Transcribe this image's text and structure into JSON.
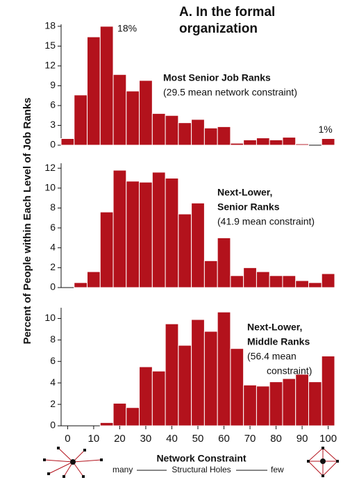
{
  "title": "A. In the formal organization",
  "ylabel": "Percent of People within Each Level of Job Ranks",
  "xlabel": "Network Constraint",
  "axis_note": {
    "left": "many",
    "middle": "Structural Holes",
    "right": "few"
  },
  "chart_data": [
    {
      "type": "histogram",
      "color": "#b3121c",
      "bins": [
        -2.5,
        2.5,
        7.5,
        12.5,
        17.5,
        22.5,
        27.5,
        32.5,
        37.5,
        42.5,
        47.5,
        52.5,
        57.5,
        62.5,
        67.5,
        72.5,
        77.5,
        82.5,
        87.5,
        92.5,
        97.5,
        102.5
      ],
      "values": [
        1,
        7.6,
        16.4,
        18,
        10.7,
        8.2,
        9.8,
        4.8,
        4.5,
        3.4,
        3.9,
        2.6,
        2.8,
        0.3,
        0.8,
        1.1,
        0.8,
        1.2,
        0.2,
        0,
        1
      ],
      "value_labels": [
        null,
        null,
        null,
        "18%",
        null,
        null,
        null,
        null,
        null,
        null,
        null,
        null,
        null,
        null,
        null,
        null,
        null,
        null,
        null,
        null,
        "1%"
      ],
      "ylim": [
        0,
        18.3
      ],
      "yticks": [
        0,
        3,
        6,
        9,
        12,
        15,
        18
      ],
      "annotation": {
        "bold": [
          "Most Senior Job Ranks"
        ],
        "text": [
          "(29.5 mean network constraint)"
        ]
      }
    },
    {
      "type": "histogram",
      "color": "#b3121c",
      "bins": [
        -2.5,
        2.5,
        7.5,
        12.5,
        17.5,
        22.5,
        27.5,
        32.5,
        37.5,
        42.5,
        47.5,
        52.5,
        57.5,
        62.5,
        67.5,
        72.5,
        77.5,
        82.5,
        87.5,
        92.5,
        97.5,
        102.5
      ],
      "values": [
        0,
        0.5,
        1.6,
        7.6,
        11.8,
        10.7,
        10.6,
        11.6,
        11.0,
        7.4,
        8.5,
        2.7,
        5.0,
        1.2,
        2.0,
        1.6,
        1.2,
        1.2,
        0.7,
        0.5,
        1.4
      ],
      "ylim": [
        0,
        12.5
      ],
      "yticks": [
        0,
        2,
        4,
        6,
        8,
        10,
        12
      ],
      "annotation": {
        "bold": [
          "Next-Lower,",
          "Senior Ranks"
        ],
        "text": [
          "(41.9 mean constraint)"
        ]
      }
    },
    {
      "type": "histogram",
      "color": "#b3121c",
      "bins": [
        -2.5,
        2.5,
        7.5,
        12.5,
        17.5,
        22.5,
        27.5,
        32.5,
        37.5,
        42.5,
        47.5,
        52.5,
        57.5,
        62.5,
        67.5,
        72.5,
        77.5,
        82.5,
        87.5,
        92.5,
        97.5,
        102.5
      ],
      "values": [
        0,
        0,
        0,
        0.3,
        2.1,
        1.7,
        5.5,
        5.1,
        9.5,
        7.5,
        9.9,
        8.8,
        10.6,
        7.2,
        3.8,
        3.7,
        4.1,
        4.4,
        4.8,
        4.1,
        6.5
      ],
      "ylim": [
        0,
        11
      ],
      "yticks": [
        0,
        2,
        4,
        6,
        8,
        10
      ],
      "xlim": [
        -2.5,
        102.5
      ],
      "xticks": [
        0,
        10,
        20,
        30,
        40,
        50,
        60,
        70,
        80,
        90,
        100
      ],
      "annotation": {
        "bold": [
          "Next-Lower,",
          "Middle Ranks"
        ],
        "text": [
          "(56.4 mean",
          "constraint)"
        ]
      }
    }
  ]
}
